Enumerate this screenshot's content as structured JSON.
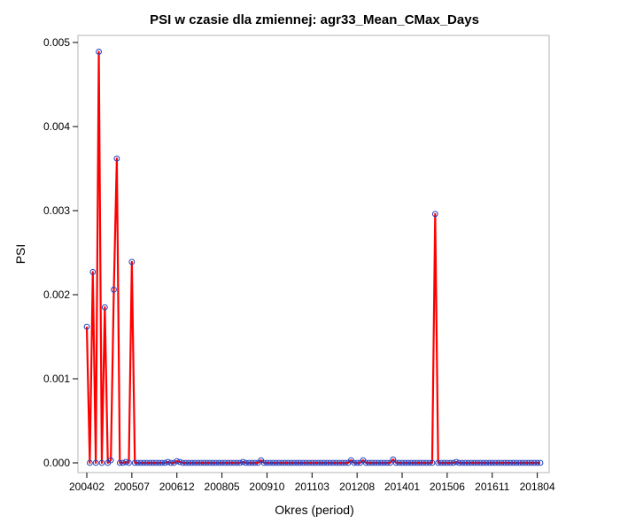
{
  "chart_data": {
    "type": "line",
    "title": "PSI w czasie dla zmiennej: agr33_Mean_CMax_Days",
    "xlabel": "Okres (period)",
    "ylabel": "PSI",
    "ylim": [
      0,
      0.005
    ],
    "yticks": [
      "0.000",
      "0.001",
      "0.002",
      "0.003",
      "0.004",
      "0.005"
    ],
    "x_ticks": [
      {
        "label": "200402",
        "index": 0
      },
      {
        "label": "200507",
        "index": 15
      },
      {
        "label": "200612",
        "index": 30
      },
      {
        "label": "200805",
        "index": 45
      },
      {
        "label": "200910",
        "index": 60
      },
      {
        "label": "201103",
        "index": 75
      },
      {
        "label": "201208",
        "index": 90
      },
      {
        "label": "201401",
        "index": 105
      },
      {
        "label": "201506",
        "index": 120
      },
      {
        "label": "201611",
        "index": 135
      },
      {
        "label": "201804",
        "index": 150
      }
    ],
    "n_points": 152,
    "series": [
      {
        "name": "PSI",
        "line_color": "#ff0000",
        "marker_color": "#1f3fbf",
        "values": [
          0.00162,
          0.0,
          0.00227,
          0.0,
          0.00489,
          0.0,
          0.00185,
          0.0,
          3e-05,
          0.00206,
          0.00362,
          0.0,
          0.0,
          1e-05,
          0.0,
          0.00239,
          0.0,
          0.0,
          0.0,
          0.0,
          0.0,
          0.0,
          0.0,
          0.0,
          0.0,
          0.0,
          0.0,
          1e-05,
          0.0,
          0.0,
          2e-05,
          1e-05,
          0.0,
          0.0,
          0.0,
          0.0,
          0.0,
          0.0,
          0.0,
          0.0,
          0.0,
          0.0,
          0.0,
          0.0,
          0.0,
          0.0,
          0.0,
          0.0,
          0.0,
          0.0,
          0.0,
          0.0,
          1e-05,
          0.0,
          0.0,
          0.0,
          0.0,
          0.0,
          3e-05,
          0.0,
          0.0,
          0.0,
          0.0,
          0.0,
          0.0,
          0.0,
          0.0,
          0.0,
          0.0,
          0.0,
          0.0,
          0.0,
          0.0,
          0.0,
          0.0,
          0.0,
          0.0,
          0.0,
          0.0,
          0.0,
          0.0,
          0.0,
          0.0,
          0.0,
          0.0,
          0.0,
          0.0,
          0.0,
          3e-05,
          0.0,
          0.0,
          0.0,
          3e-05,
          0.0,
          0.0,
          0.0,
          0.0,
          0.0,
          0.0,
          0.0,
          0.0,
          0.0,
          4e-05,
          0.0,
          0.0,
          0.0,
          0.0,
          0.0,
          0.0,
          0.0,
          0.0,
          0.0,
          0.0,
          0.0,
          0.0,
          0.0,
          0.00296,
          0.0,
          0.0,
          0.0,
          0.0,
          0.0,
          0.0,
          1e-05,
          0.0,
          0.0,
          0.0,
          0.0,
          0.0,
          0.0,
          0.0,
          0.0,
          0.0,
          0.0,
          0.0,
          0.0,
          0.0,
          0.0,
          0.0,
          0.0,
          0.0,
          0.0,
          0.0,
          0.0,
          0.0,
          0.0,
          0.0,
          0.0,
          0.0,
          0.0,
          0.0,
          0.0
        ]
      }
    ]
  }
}
